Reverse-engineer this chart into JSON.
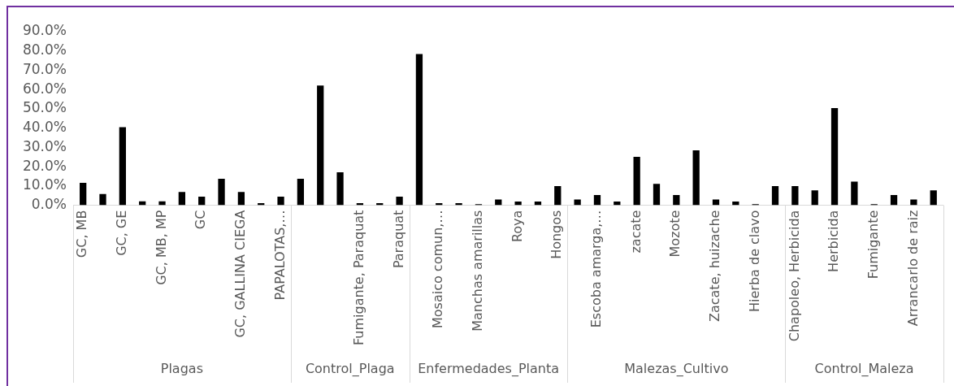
{
  "chart_data": {
    "type": "bar",
    "categories": [
      "GC, MB",
      null,
      "GC, GE",
      null,
      "GC, MB, MP",
      null,
      "GC",
      null,
      "GC, GALLINA CIEGA",
      null,
      "PAPALOTAS,…",
      null,
      null,
      null,
      "Fumigante, Paraquat",
      null,
      "Paraquat",
      null,
      "Mosaico comun,…",
      null,
      "Manchas amarillas",
      null,
      "Roya",
      null,
      "Hongos",
      null,
      "Escoba amarga,…",
      null,
      "zacate",
      null,
      "Mozote",
      null,
      "Zacate, huizache",
      null,
      "Hierba de clavo",
      null,
      "Chapoleo, Herbicida",
      null,
      "Herbicida",
      null,
      "Fumigante",
      null,
      "Arrancarlo de raiz",
      null
    ],
    "values": [
      11.6,
      5.8,
      40.5,
      2.1,
      2.1,
      6.9,
      4.5,
      13.7,
      6.9,
      1.1,
      4.5,
      13.7,
      62.1,
      17.1,
      1.1,
      1.1,
      4.5,
      78.4,
      1.1,
      1.1,
      0.6,
      3.0,
      1.9,
      1.9,
      10.0,
      3.0,
      5.3,
      1.9,
      25.1,
      11.1,
      5.3,
      28.5,
      3.0,
      1.9,
      0.6,
      10.0,
      10.0,
      7.7,
      50.4,
      12.3,
      0.6,
      5.3,
      3.0,
      7.7
    ],
    "color": "#000000",
    "ylim": [
      0,
      90
    ],
    "yticks": [
      {
        "value": 0,
        "label": "0.0%"
      },
      {
        "value": 10,
        "label": "10.0%"
      },
      {
        "value": 20,
        "label": "20.0%"
      },
      {
        "value": 30,
        "label": "30.0%"
      },
      {
        "value": 40,
        "label": "40.0%"
      },
      {
        "value": 50,
        "label": "50.0%"
      },
      {
        "value": 60,
        "label": "60.0%"
      },
      {
        "value": 70,
        "label": "70.0%"
      },
      {
        "value": 80,
        "label": "80.0%"
      },
      {
        "value": 90,
        "label": "90.0%"
      }
    ],
    "annotations": [
      "Plagas",
      "Control_Plaga",
      "Enfermedades_Planta",
      "Malezas_Cultivo",
      "Control_Maleza"
    ]
  }
}
